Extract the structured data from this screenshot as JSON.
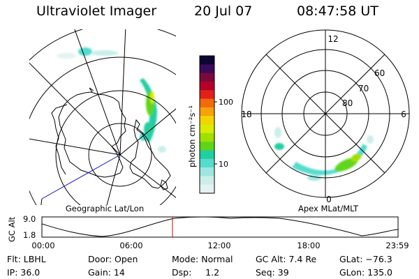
{
  "header": {
    "title": "Ultraviolet Imager",
    "date": "20 Jul 07",
    "time": "08:47:58 UT"
  },
  "colorbar": {
    "unit_label": "photon cm⁻²s⁻¹",
    "ticks": [
      "100",
      "10"
    ],
    "colors": [
      "#0b0633",
      "#3a0b5a",
      "#7a0a3c",
      "#b5002a",
      "#e0201a",
      "#f26a0c",
      "#f7a10b",
      "#f4d400",
      "#d9ec00",
      "#9fe000",
      "#5fd51a",
      "#21cfa0",
      "#55dccc",
      "#9fe6df",
      "#cbeeea",
      "#e4f3f1"
    ]
  },
  "left_map": {
    "caption": "Geographic Lat/Lon"
  },
  "right_map": {
    "caption": "Apex MLat/MLT",
    "mlt_labels": [
      "12",
      "18",
      "6",
      "0"
    ],
    "lat_labels": [
      "60",
      "70",
      "80"
    ]
  },
  "timeline": {
    "ylabel": "GC Alt",
    "yticks": [
      "9.0",
      "1.8"
    ],
    "xticks": [
      "00:00",
      "06:00",
      "12:00",
      "18:00",
      "23:59"
    ],
    "marker_color": "#d00000"
  },
  "info": {
    "flt": "Flt: LBHL",
    "ip": "IP: 36.0",
    "door": "Door: Open",
    "gain": "Gain: 14",
    "mode": "Mode: Normal",
    "dsp": "Dsp:     1.2",
    "gcalt": "GC Alt: 7.4 Re",
    "seq": "Seq: 39",
    "glat": "GLat: −76.3",
    "glon": "GLon: 135.0"
  }
}
